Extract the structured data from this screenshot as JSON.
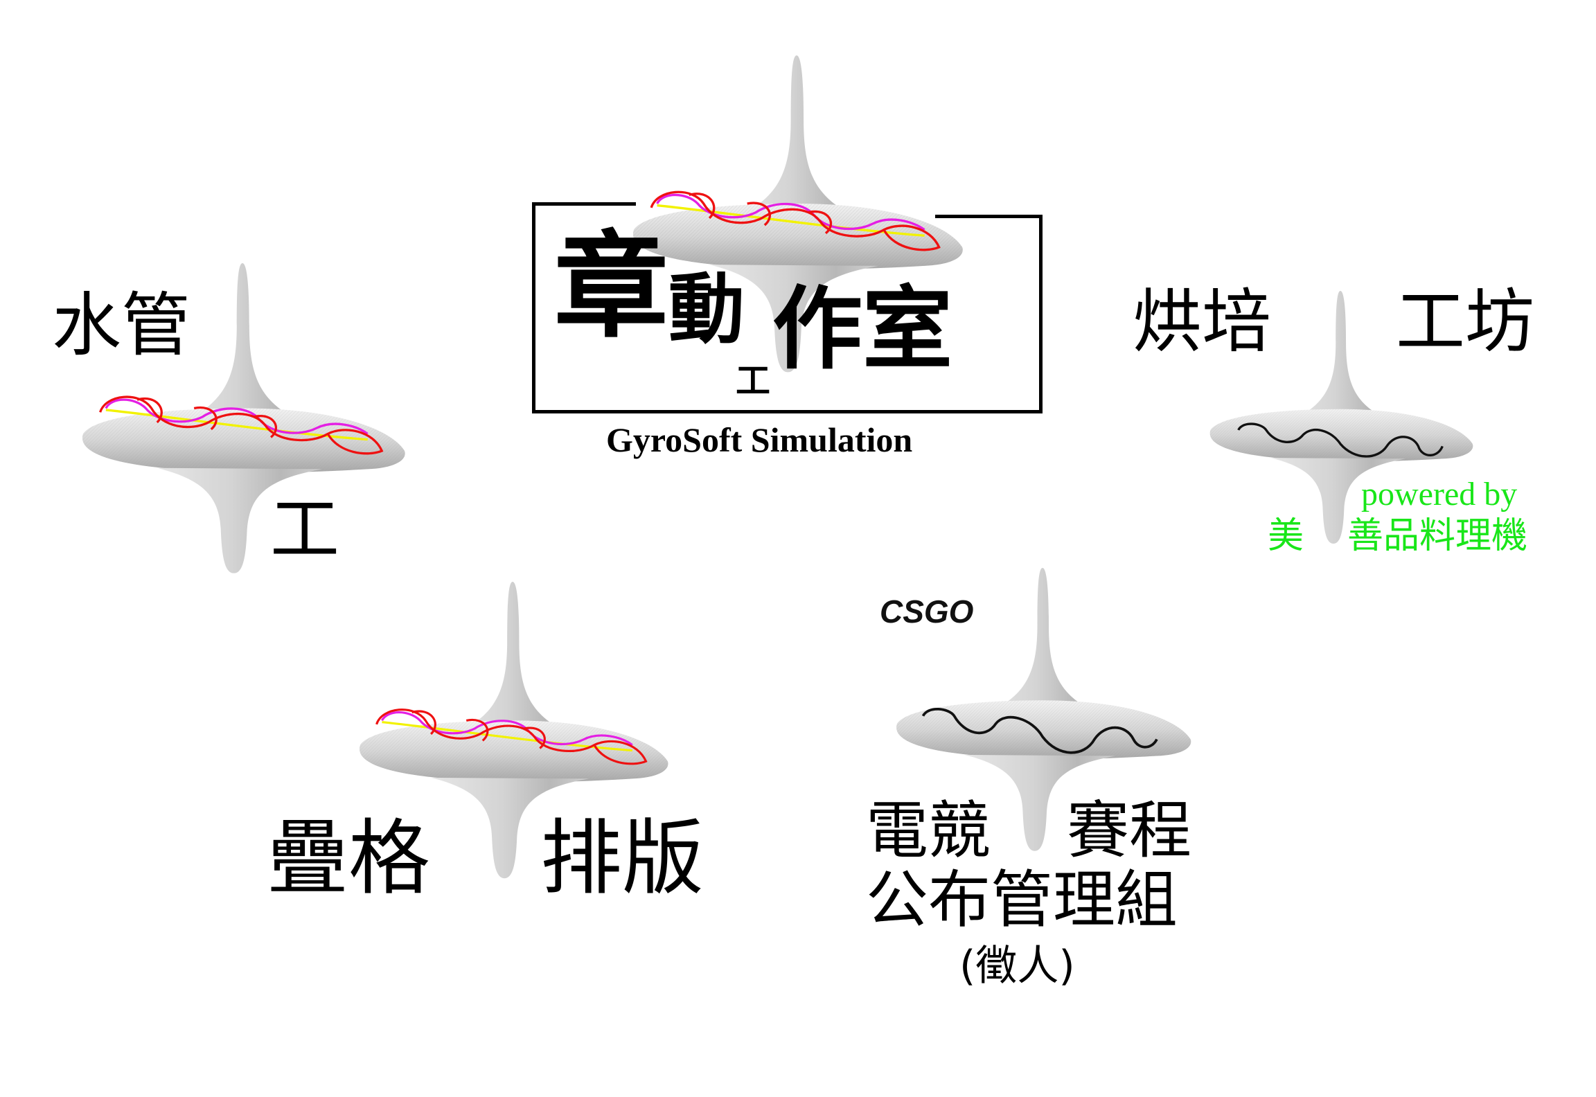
{
  "logos": {
    "center": {
      "line1": "章",
      "line2": "動",
      "small": "工",
      "line3": "作室",
      "subtitle": "GyroSoft Simulation"
    },
    "water": {
      "top": "水管",
      "bottom": "工"
    },
    "bakery": {
      "top_left": "烘培",
      "top_right": "工坊",
      "powered": "powered by",
      "sponsor_a": "美",
      "sponsor_b": "善品料理機"
    },
    "layout": {
      "left": "疊格",
      "right": "排版"
    },
    "esports": {
      "tag": "CSGO",
      "row1_left": "電競",
      "row1_right": "賽程",
      "row2": "公布管理組",
      "row3": "(徵人)"
    }
  },
  "colors": {
    "accent_green": "#19e619",
    "trace_red": "#ee1111",
    "trace_magenta": "#e41fe4",
    "trace_yellow": "#f2f200",
    "top_gray": "#c8c8c8"
  }
}
